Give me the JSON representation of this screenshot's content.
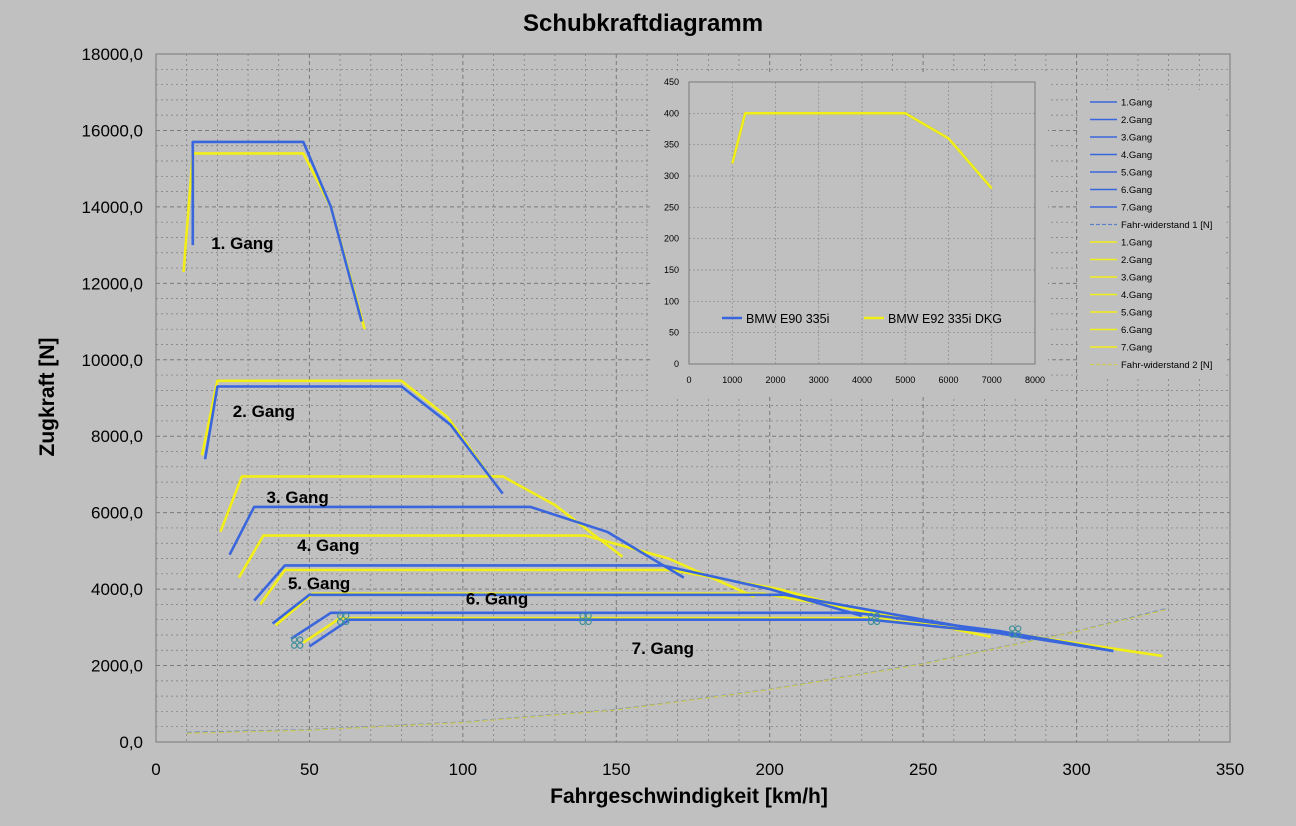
{
  "chart_data": [
    {
      "type": "line",
      "title": "Schubkraftdiagramm",
      "xlabel": "Fahrgeschwindigkeit [km/h]",
      "ylabel": "Zugkraft [N]",
      "xlim": [
        0,
        350
      ],
      "ylim": [
        0,
        18000
      ],
      "x_ticks": [
        0,
        50,
        100,
        150,
        200,
        250,
        300,
        350
      ],
      "y_ticks": [
        0,
        2000,
        4000,
        6000,
        8000,
        10000,
        12000,
        14000,
        16000,
        18000
      ],
      "y_tick_labels": [
        "0,0",
        "2000,0",
        "4000,0",
        "6000,0",
        "8000,0",
        "10000,0",
        "12000,0",
        "14000,0",
        "16000,0",
        "18000,0"
      ],
      "grid": true,
      "legend_position": "right",
      "annotations": [
        {
          "text": "1. Gang",
          "x": 18,
          "y": 12900
        },
        {
          "text": "2. Gang",
          "x": 25,
          "y": 8500
        },
        {
          "text": "3. Gang",
          "x": 36,
          "y": 6250
        },
        {
          "text": "4. Gang",
          "x": 46,
          "y": 5000
        },
        {
          "text": "5. Gang",
          "x": 43,
          "y": 4000
        },
        {
          "text": "6. Gang",
          "x": 101,
          "y": 3600
        },
        {
          "text": "7. Gang",
          "x": 155,
          "y": 2300
        }
      ],
      "colors": {
        "blue": "#3a66dd",
        "yellow": "#f2ee18",
        "blue_dashed": "#5a80c6",
        "yellow_dashed": "#ccc85a"
      },
      "series": [
        {
          "name": "1.Gang",
          "group": "blue",
          "x": [
            12,
            12,
            48,
            57,
            67
          ],
          "y": [
            13000,
            15700,
            15700,
            14000,
            11000
          ]
        },
        {
          "name": "2.Gang",
          "group": "blue",
          "x": [
            16,
            20,
            80,
            96,
            113
          ],
          "y": [
            7400,
            9300,
            9300,
            8300,
            6500
          ]
        },
        {
          "name": "3.Gang",
          "group": "blue",
          "x": [
            24,
            32,
            122,
            147,
            172
          ],
          "y": [
            4900,
            6150,
            6150,
            5500,
            4300
          ]
        },
        {
          "name": "4.Gang",
          "group": "blue",
          "x": [
            32,
            42,
            165,
            200,
            230
          ],
          "y": [
            3700,
            4620,
            4620,
            4000,
            3300
          ]
        },
        {
          "name": "5.Gang",
          "group": "blue",
          "x": [
            38,
            50,
            205,
            250,
            285
          ],
          "y": [
            3100,
            3850,
            3850,
            3200,
            2700
          ]
        },
        {
          "name": "6.Gang",
          "group": "blue",
          "x": [
            44,
            57,
            228,
            275,
            312
          ],
          "y": [
            2700,
            3380,
            3380,
            2900,
            2380
          ]
        },
        {
          "name": "7.Gang",
          "group": "blue",
          "x": [
            50,
            63,
            233,
            275,
            312
          ],
          "y": [
            2500,
            3200,
            3200,
            2850,
            2380
          ]
        },
        {
          "name": "Fahr-widerstand 1 [N]",
          "group": "blue_dashed",
          "dashed": true,
          "x": [
            10,
            50,
            100,
            150,
            200,
            250,
            300,
            330
          ],
          "y": [
            250,
            320,
            520,
            850,
            1380,
            2050,
            2900,
            3500
          ]
        },
        {
          "name": "1.Gang",
          "group": "yellow",
          "x": [
            9,
            12,
            48,
            57,
            68
          ],
          "y": [
            12300,
            15400,
            15400,
            14000,
            10800
          ]
        },
        {
          "name": "2.Gang",
          "group": "yellow",
          "x": [
            15,
            20,
            80,
            95,
            111
          ],
          "y": [
            7500,
            9450,
            9450,
            8500,
            6700
          ]
        },
        {
          "name": "3.Gang",
          "group": "yellow",
          "x": [
            21,
            28,
            113,
            130,
            152
          ],
          "y": [
            5500,
            6950,
            6950,
            6200,
            4850
          ]
        },
        {
          "name": "4.Gang",
          "group": "yellow",
          "x": [
            27,
            35,
            140,
            167,
            195
          ],
          "y": [
            4300,
            5400,
            5400,
            4800,
            3800
          ]
        },
        {
          "name": "5.Gang",
          "group": "yellow",
          "x": [
            34,
            42,
            168,
            203,
            240
          ],
          "y": [
            3600,
            4500,
            4500,
            4000,
            3200
          ]
        },
        {
          "name": "6.Gang",
          "group": "yellow",
          "x": [
            39,
            51,
            198,
            240,
            272
          ],
          "y": [
            3050,
            3880,
            3880,
            3300,
            2750
          ]
        },
        {
          "name": "7.Gang",
          "group": "yellow",
          "x": [
            48,
            60,
            232,
            282,
            328
          ],
          "y": [
            2600,
            3240,
            3240,
            2800,
            2250
          ]
        },
        {
          "name": "Fahr-widerstand 2 [N]",
          "group": "yellow_dashed",
          "dashed": true,
          "x": [
            10,
            50,
            100,
            150,
            200,
            250,
            300,
            330
          ],
          "y": [
            230,
            310,
            510,
            840,
            1370,
            2040,
            2890,
            3480
          ]
        }
      ],
      "markers": [
        {
          "x": 46,
          "y": 2600
        },
        {
          "x": 61,
          "y": 3220
        },
        {
          "x": 140,
          "y": 3220
        },
        {
          "x": 234,
          "y": 3220
        },
        {
          "x": 280,
          "y": 2890
        }
      ]
    },
    {
      "type": "line",
      "title": "",
      "xlim": [
        0,
        8000
      ],
      "ylim": [
        0,
        450
      ],
      "x_ticks": [
        0,
        1000,
        2000,
        3000,
        4000,
        5000,
        6000,
        7000,
        8000
      ],
      "y_ticks": [
        0,
        50,
        100,
        150,
        200,
        250,
        300,
        350,
        400,
        450
      ],
      "grid": true,
      "legend_position": "bottom-left",
      "series": [
        {
          "name": "BMW E90 335i",
          "color": "#3a66dd",
          "x": [
            1000,
            1300,
            5000,
            6000,
            7000
          ],
          "y": [
            320,
            400,
            400,
            360,
            280
          ]
        },
        {
          "name": "BMW E92 335i DKG",
          "color": "#f2ee18",
          "x": [
            1000,
            1300,
            5000,
            6000,
            7000
          ],
          "y": [
            320,
            400,
            400,
            360,
            280
          ]
        }
      ]
    }
  ]
}
